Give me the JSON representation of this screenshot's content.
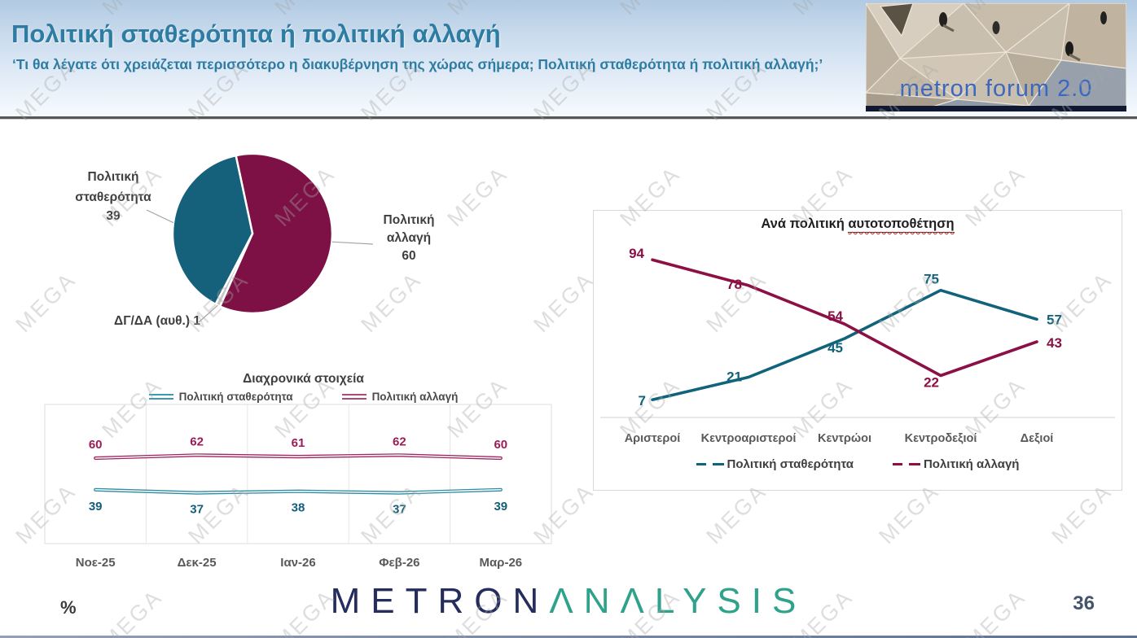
{
  "header": {
    "title": "Πολιτική σταθερότητα ή πολιτική αλλαγή",
    "subtitle": "‘Τι θα λέγατε ότι χρειάζεται περισσότερο η διακυβέρνηση της χώρας σήμερα; Πολιτική σταθερότητα ή πολιτική αλλαγή;’",
    "logo_text": "metron forum 2.0"
  },
  "watermark": {
    "text": "MEGA"
  },
  "colors": {
    "teal": "#15607a",
    "maroon": "#7d1146",
    "grey_slice": "#c8c8c8",
    "timeline_teal_line": "#2f8ba3",
    "timeline_maroon_line": "#a02861",
    "timeline_teal_label": "#135f79",
    "timeline_maroon_label": "#9c1b56",
    "pos_teal": "#11637b",
    "pos_maroon": "#8c1045",
    "header_text": "#2e7ca2",
    "brand_navy": "#252c5e",
    "brand_green": "#2fa28c",
    "logo_blue": "#3b68be",
    "axis_text": "#595959",
    "label_dark": "#3f3f3f"
  },
  "chart_data": [
    {
      "type": "pie",
      "slices": [
        {
          "label": "Πολιτική αλλαγή",
          "value": 60,
          "color": "#7d1146"
        },
        {
          "label": "ΔΓ/ΔΑ (αυθ.)",
          "value": 1,
          "color": "#c8c8c8"
        },
        {
          "label": "Πολιτική σταθερότητα",
          "value": 39,
          "color": "#15607a"
        }
      ]
    },
    {
      "type": "line",
      "title": "Διαχρονικά στοιχεία",
      "categories": [
        "Νοε-25",
        "Δεκ-25",
        "Ιαν-26",
        "Φεβ-26",
        "Μαρ-26"
      ],
      "series": [
        {
          "name": "Πολιτική σταθερότητα",
          "values": [
            39,
            37,
            38,
            37,
            39
          ]
        },
        {
          "name": "Πολιτική αλλαγή",
          "values": [
            60,
            62,
            61,
            62,
            60
          ]
        }
      ],
      "ylim": [
        0,
        100
      ],
      "legend_position": "top",
      "grid": "vertical"
    },
    {
      "type": "line",
      "title_prefix": "Ανά πολιτική ",
      "title_underlined": "αυτοτοποθέτηση",
      "categories": [
        "Αριστεροί",
        "Κεντροαριστεροί",
        "Κεντρώοι",
        "Κεντροδεξιοί",
        "Δεξιοί"
      ],
      "series": [
        {
          "name": "Πολιτική σταθερότητα",
          "values": [
            7,
            21,
            45,
            75,
            57
          ]
        },
        {
          "name": "Πολιτική αλλαγή",
          "values": [
            94,
            78,
            54,
            22,
            43
          ]
        }
      ],
      "ylim": [
        0,
        100
      ],
      "legend_position": "bottom",
      "grid": "off"
    }
  ],
  "footer": {
    "brand_metron": "METRON",
    "brand_analysis": "ΛNΛLYSIS",
    "percent_label": "%",
    "page_number": "36"
  }
}
